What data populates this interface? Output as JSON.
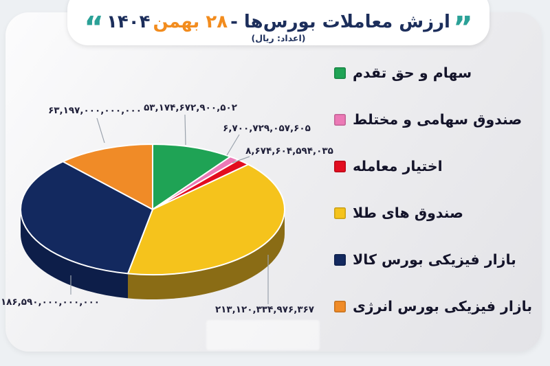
{
  "header": {
    "title_prefix": "ارزش معاملات بورس‌ها - ",
    "title_date": "۲۸ بهمن",
    "title_year": " ۱۴۰۴",
    "subtitle": "(اعداد: ریال)",
    "quote_right": "”",
    "quote_left": "“",
    "title_color": "#1c2e5b",
    "date_color": "#f28c1e",
    "quote_color": "#2ba197"
  },
  "chart_data": {
    "type": "pie",
    "style": "3d",
    "title": "ارزش معاملات بورس‌ها - ۲۸ بهمن ۱۴۰۴",
    "unit_note": "(اعداد: ریال)",
    "start_angle_deg": 0,
    "direction": "clockwise",
    "legend_position": "right",
    "slices": [
      {
        "label": "سهام و حق تقدم",
        "value": 53174672900502,
        "value_fa": "۵۳,۱۷۴,۶۷۲,۹۰۰,۵۰۲",
        "color": "#1fa355"
      },
      {
        "label": "صندوق سهامی و مختلط",
        "value": 6700729057605,
        "value_fa": "۶,۷۰۰,۷۲۹,۰۵۷,۶۰۵",
        "color": "#ec79b6"
      },
      {
        "label": "اختیار معامله",
        "value": 8674604594035,
        "value_fa": "۸,۶۷۴,۶۰۴,۵۹۴,۰۳۵",
        "color": "#e30d1f"
      },
      {
        "label": "صندوق های طلا",
        "value": 213120334976367,
        "value_fa": "۲۱۳,۱۲۰,۳۳۴,۹۷۶,۳۶۷",
        "color": "#f5c31c",
        "side_color": "#8a6c15"
      },
      {
        "label": "بازار فیزیکی بورس کالا",
        "value": 186590000000000,
        "value_fa": "۱۸۶,۵۹۰,۰۰۰,۰۰۰,۰۰۰",
        "color": "#13295f",
        "side_color": "#0d1e49"
      },
      {
        "label": "بازار فیزیکی بورس انرژی",
        "value": 63197000000000,
        "value_fa": "۶۳,۱۹۷,۰۰۰,۰۰۰,۰۰۰",
        "color": "#f08b27"
      }
    ]
  }
}
